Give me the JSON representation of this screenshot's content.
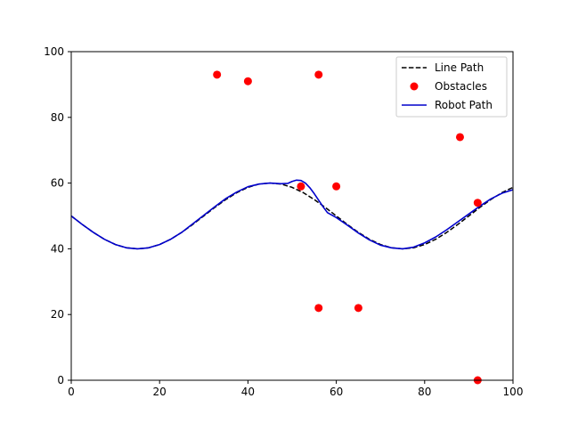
{
  "chart_data": {
    "type": "line",
    "title": "",
    "xlabel": "",
    "ylabel": "",
    "xlim": [
      0,
      100
    ],
    "ylim": [
      0,
      100
    ],
    "x_ticks": [
      0,
      20,
      40,
      60,
      80,
      100
    ],
    "y_ticks": [
      0,
      20,
      40,
      60,
      80,
      100
    ],
    "grid": false,
    "legend_position": "top-right",
    "series": [
      {
        "name": "Line Path",
        "kind": "line",
        "style": "dashed",
        "color": "#000000",
        "points": [
          [
            0,
            50.0
          ],
          [
            2.5,
            47.4
          ],
          [
            5,
            45.0
          ],
          [
            7.5,
            42.9
          ],
          [
            10,
            41.3
          ],
          [
            12.5,
            40.3
          ],
          [
            15,
            40.0
          ],
          [
            17.5,
            40.3
          ],
          [
            20,
            41.3
          ],
          [
            22.5,
            42.9
          ],
          [
            25,
            45.0
          ],
          [
            27.5,
            47.4
          ],
          [
            30,
            50.0
          ],
          [
            32.5,
            52.6
          ],
          [
            35,
            55.0
          ],
          [
            37.5,
            57.1
          ],
          [
            40,
            58.7
          ],
          [
            42.5,
            59.7
          ],
          [
            45,
            60.0
          ],
          [
            47.5,
            59.7
          ],
          [
            50,
            58.7
          ],
          [
            52.5,
            57.1
          ],
          [
            55,
            55.0
          ],
          [
            57.5,
            52.6
          ],
          [
            60,
            50.0
          ],
          [
            62.5,
            47.4
          ],
          [
            65,
            45.0
          ],
          [
            67.5,
            42.9
          ],
          [
            70,
            41.3
          ],
          [
            72.5,
            40.3
          ],
          [
            75,
            40.0
          ],
          [
            77.5,
            40.3
          ],
          [
            80,
            41.3
          ],
          [
            82.5,
            42.9
          ],
          [
            85,
            45.0
          ],
          [
            87.5,
            47.4
          ],
          [
            90,
            50.0
          ],
          [
            92.5,
            52.6
          ],
          [
            95,
            55.0
          ],
          [
            97.5,
            57.1
          ],
          [
            100,
            58.7
          ]
        ]
      },
      {
        "name": "Obstacles",
        "kind": "scatter",
        "color": "#ff0000",
        "points": [
          [
            33,
            93
          ],
          [
            40,
            91
          ],
          [
            56,
            93
          ],
          [
            88,
            74
          ],
          [
            52,
            59
          ],
          [
            60,
            59
          ],
          [
            92,
            54
          ],
          [
            56,
            22
          ],
          [
            65,
            22
          ],
          [
            92,
            0
          ]
        ]
      },
      {
        "name": "Robot Path",
        "kind": "line",
        "style": "solid",
        "color": "#0000cc",
        "points": [
          [
            0,
            50.0
          ],
          [
            2.5,
            47.4
          ],
          [
            5,
            45.0
          ],
          [
            7.5,
            42.9
          ],
          [
            10,
            41.3
          ],
          [
            12.5,
            40.3
          ],
          [
            15,
            40.0
          ],
          [
            17.5,
            40.3
          ],
          [
            20,
            41.3
          ],
          [
            22.5,
            42.9
          ],
          [
            25,
            45.0
          ],
          [
            27.5,
            47.6
          ],
          [
            30,
            50.2
          ],
          [
            32.5,
            52.8
          ],
          [
            35,
            55.3
          ],
          [
            37.5,
            57.3
          ],
          [
            40,
            58.9
          ],
          [
            42.5,
            59.7
          ],
          [
            45,
            60.0
          ],
          [
            47.5,
            59.8
          ],
          [
            49,
            59.9
          ],
          [
            50,
            60.5
          ],
          [
            51,
            60.9
          ],
          [
            52,
            60.8
          ],
          [
            53,
            60.0
          ],
          [
            54,
            58.6
          ],
          [
            55,
            56.8
          ],
          [
            56,
            54.8
          ],
          [
            57,
            52.8
          ],
          [
            58,
            51.0
          ],
          [
            60,
            49.5
          ],
          [
            62.5,
            47.2
          ],
          [
            65,
            44.8
          ],
          [
            67.5,
            42.7
          ],
          [
            70,
            41.1
          ],
          [
            72.5,
            40.3
          ],
          [
            75,
            40.0
          ],
          [
            77.5,
            40.5
          ],
          [
            80,
            41.8
          ],
          [
            82.5,
            43.6
          ],
          [
            85,
            45.8
          ],
          [
            87.5,
            48.2
          ],
          [
            90,
            50.6
          ],
          [
            92.5,
            53.0
          ],
          [
            95,
            55.2
          ],
          [
            97.5,
            56.9
          ],
          [
            100,
            58.0
          ]
        ]
      }
    ]
  }
}
